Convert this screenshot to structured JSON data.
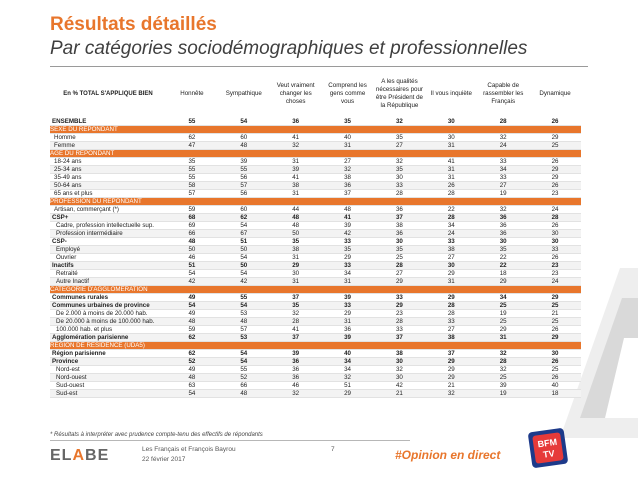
{
  "header": {
    "title": "Résultats détaillés",
    "subtitle": "Par catégories sociodémographiques et professionnelles"
  },
  "table": {
    "corner_label": "En % TOTAL S'APPLIQUE BIEN",
    "columns": [
      "Honnête",
      "Sympathique",
      "Veut vraiment changer les choses",
      "Comprend les gens comme vous",
      "A les qualités nécessaires pour être Président de la République",
      "Il vous inquiète",
      "Capable de rassembler les Français",
      "Dynamique"
    ],
    "rows": [
      {
        "label": "ENSEMBLE",
        "style": "ensemble",
        "values": [
          "55",
          "54",
          "36",
          "35",
          "32",
          "30",
          "28",
          "26"
        ]
      },
      {
        "label": "SEXE DU REPONDANT",
        "style": "section"
      },
      {
        "label": "Homme",
        "style": "ind",
        "values": [
          "62",
          "60",
          "41",
          "40",
          "35",
          "30",
          "32",
          "29"
        ]
      },
      {
        "label": "Femme",
        "style": "ind",
        "values": [
          "47",
          "48",
          "32",
          "31",
          "27",
          "31",
          "24",
          "25"
        ]
      },
      {
        "label": "AGE DU REPONDANT",
        "style": "section"
      },
      {
        "label": "18-24 ans",
        "style": "ind",
        "values": [
          "35",
          "39",
          "31",
          "27",
          "32",
          "41",
          "33",
          "26"
        ]
      },
      {
        "label": "25-34 ans",
        "style": "ind",
        "values": [
          "55",
          "55",
          "39",
          "32",
          "35",
          "31",
          "34",
          "29"
        ]
      },
      {
        "label": "35-49 ans",
        "style": "ind",
        "values": [
          "55",
          "56",
          "41",
          "38",
          "30",
          "31",
          "33",
          "29"
        ]
      },
      {
        "label": "50-64 ans",
        "style": "ind",
        "values": [
          "58",
          "57",
          "38",
          "36",
          "33",
          "26",
          "27",
          "26"
        ]
      },
      {
        "label": "65 ans et plus",
        "style": "ind",
        "values": [
          "57",
          "56",
          "31",
          "37",
          "28",
          "28",
          "19",
          "23"
        ]
      },
      {
        "label": "PROFESSION DU REPONDANT",
        "style": "section"
      },
      {
        "label": "Artisan, commerçant (*)",
        "style": "ind",
        "values": [
          "59",
          "60",
          "44",
          "48",
          "36",
          "22",
          "32",
          "24"
        ]
      },
      {
        "label": "CSP+",
        "style": "bold",
        "values": [
          "68",
          "62",
          "48",
          "41",
          "37",
          "28",
          "36",
          "28"
        ]
      },
      {
        "label": "Cadre, profession intellectuelle sup.",
        "style": "ind2",
        "values": [
          "69",
          "54",
          "48",
          "39",
          "38",
          "34",
          "36",
          "26"
        ]
      },
      {
        "label": "Profession intermédiaire",
        "style": "ind2",
        "values": [
          "66",
          "67",
          "50",
          "42",
          "36",
          "24",
          "36",
          "30"
        ]
      },
      {
        "label": "CSP-",
        "style": "bold",
        "values": [
          "48",
          "51",
          "35",
          "33",
          "30",
          "33",
          "30",
          "30"
        ]
      },
      {
        "label": "Employé",
        "style": "ind2",
        "values": [
          "50",
          "50",
          "38",
          "35",
          "35",
          "38",
          "35",
          "33"
        ]
      },
      {
        "label": "Ouvrier",
        "style": "ind2",
        "values": [
          "46",
          "54",
          "31",
          "29",
          "25",
          "27",
          "22",
          "26"
        ]
      },
      {
        "label": "Inactifs",
        "style": "bold",
        "values": [
          "51",
          "50",
          "29",
          "33",
          "28",
          "30",
          "22",
          "23"
        ]
      },
      {
        "label": "Retraité",
        "style": "ind2",
        "values": [
          "54",
          "54",
          "30",
          "34",
          "27",
          "29",
          "18",
          "23"
        ]
      },
      {
        "label": "Autre Inactif",
        "style": "ind2",
        "values": [
          "42",
          "42",
          "31",
          "31",
          "29",
          "31",
          "29",
          "24"
        ]
      },
      {
        "label": "CATEGORIE D'AGGLOMERATION",
        "style": "section"
      },
      {
        "label": "Communes rurales",
        "style": "bold",
        "values": [
          "49",
          "55",
          "37",
          "39",
          "33",
          "29",
          "34",
          "29"
        ]
      },
      {
        "label": "Communes urbaines de province",
        "style": "bold",
        "values": [
          "54",
          "54",
          "35",
          "33",
          "29",
          "28",
          "25",
          "25"
        ]
      },
      {
        "label": "De 2.000 à moins de 20.000 hab.",
        "style": "ind2",
        "values": [
          "49",
          "53",
          "32",
          "29",
          "23",
          "28",
          "19",
          "21"
        ]
      },
      {
        "label": "De 20.000 à moins de 100.000 hab.",
        "style": "ind2",
        "values": [
          "48",
          "48",
          "28",
          "31",
          "28",
          "33",
          "25",
          "25"
        ]
      },
      {
        "label": "100.000 hab. et plus",
        "style": "ind2",
        "values": [
          "59",
          "57",
          "41",
          "36",
          "33",
          "27",
          "29",
          "26"
        ]
      },
      {
        "label": "Agglomération parisienne",
        "style": "bold",
        "values": [
          "62",
          "53",
          "37",
          "39",
          "37",
          "38",
          "31",
          "29"
        ]
      },
      {
        "label": "REGION DE RESIDENCE (UDA5)",
        "style": "section"
      },
      {
        "label": "Région parisienne",
        "style": "bold",
        "values": [
          "62",
          "54",
          "39",
          "40",
          "38",
          "37",
          "32",
          "30"
        ]
      },
      {
        "label": "Province",
        "style": "bold",
        "values": [
          "52",
          "54",
          "36",
          "34",
          "30",
          "29",
          "28",
          "26"
        ]
      },
      {
        "label": "Nord-est",
        "style": "ind2",
        "values": [
          "49",
          "55",
          "36",
          "34",
          "32",
          "29",
          "32",
          "25"
        ]
      },
      {
        "label": "Nord-ouest",
        "style": "ind2",
        "values": [
          "48",
          "52",
          "36",
          "32",
          "30",
          "29",
          "25",
          "26"
        ]
      },
      {
        "label": "Sud-ouest",
        "style": "ind2",
        "values": [
          "63",
          "66",
          "46",
          "51",
          "42",
          "21",
          "39",
          "40"
        ]
      },
      {
        "label": "Sud-est",
        "style": "ind2",
        "values": [
          "54",
          "48",
          "32",
          "29",
          "21",
          "32",
          "19",
          "18"
        ]
      }
    ]
  },
  "footnote": "* Résultats à interpréter avec prudence compte-tenu des effectifs de répondants",
  "footer": {
    "logo_text": "ELABE",
    "line1": "Les Français et François Bayrou",
    "line2": "22 février 2017",
    "page_number": "7",
    "hashtag": "#Opinion en direct",
    "partner_logo": "BFM TV"
  },
  "colors": {
    "accent": "#e8762c",
    "section_bg": "#e8762c",
    "text": "#222222"
  }
}
